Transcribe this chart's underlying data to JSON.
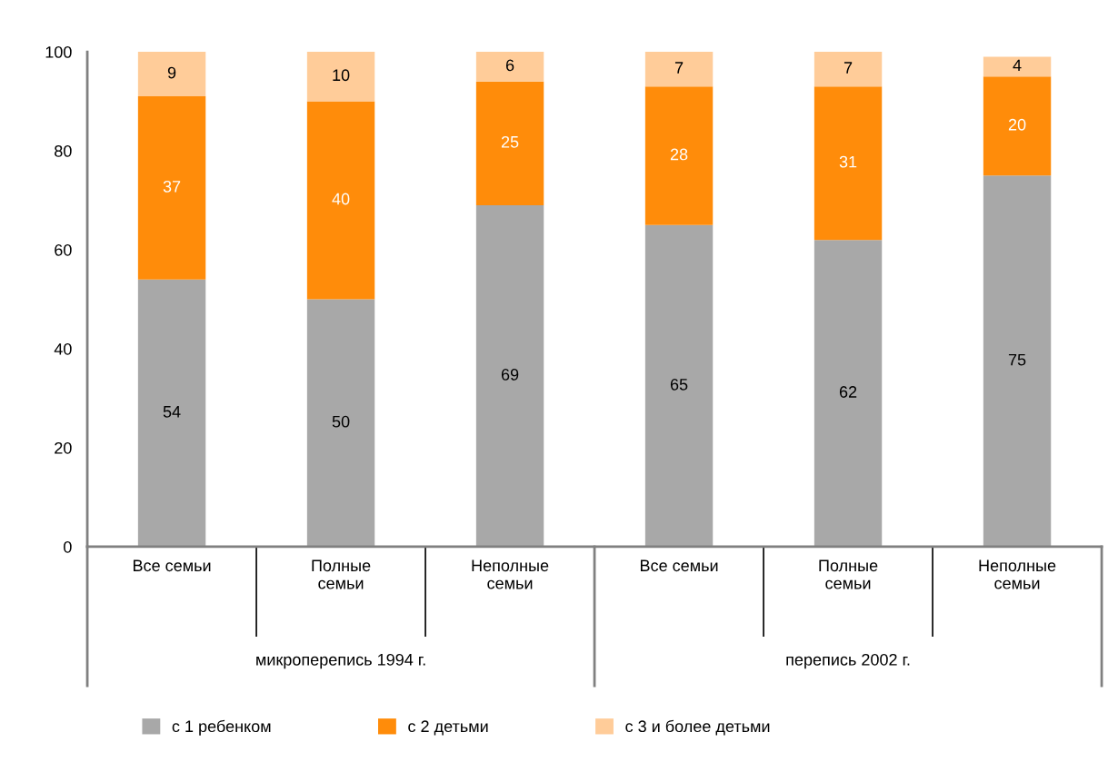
{
  "chart_data": {
    "type": "bar",
    "stacked": true,
    "categories": [
      "Все семьи",
      "Полные\nсемьи",
      "Неполные\nсемьи",
      "Все семьи",
      "Полные\nсемьи",
      "Неполные\nсемьи"
    ],
    "series": [
      {
        "name": "с 1 ребенком",
        "color": "#a8a8a8",
        "values": [
          54,
          50,
          69,
          65,
          62,
          75
        ]
      },
      {
        "name": "с 2 детьми",
        "color": "#ff8c0a",
        "values": [
          37,
          40,
          25,
          28,
          31,
          20
        ]
      },
      {
        "name": "с 3 и более детьми",
        "color": "#ffcc99",
        "values": [
          9,
          10,
          6,
          7,
          7,
          4
        ]
      }
    ],
    "annotations": [
      "микроперепись 1994 г.",
      "перепись 2002 г."
    ],
    "ylim": [
      0,
      100
    ],
    "yticks": [
      0,
      20,
      40,
      60,
      80,
      100
    ],
    "data_labels": true,
    "legend": "bottom"
  }
}
